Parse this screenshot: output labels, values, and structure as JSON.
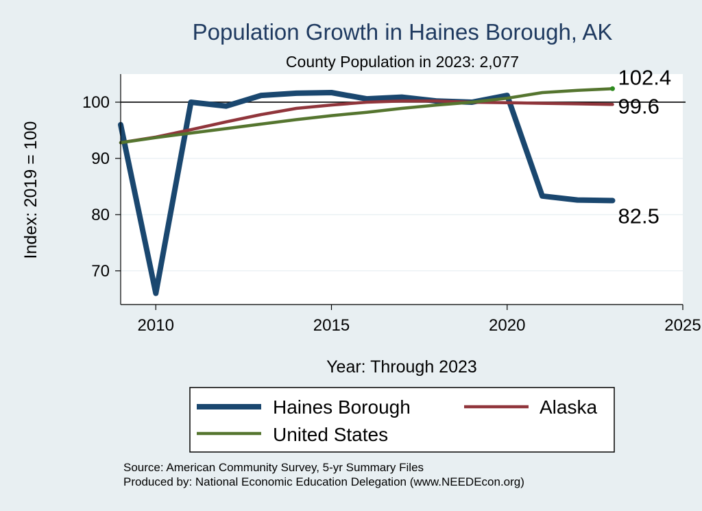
{
  "chart_data": {
    "type": "line",
    "title": "Population Growth in Haines Borough, AK",
    "subtitle": "County Population in 2023: 2,077",
    "xlabel": "Year: Through 2023",
    "ylabel": "Index: 2019 = 100",
    "xlim": [
      2009,
      2025
    ],
    "ylim": [
      64,
      105
    ],
    "xticks": [
      2010,
      2015,
      2020,
      2025
    ],
    "yticks": [
      70,
      80,
      90,
      100
    ],
    "reference_line": 100,
    "grid": true,
    "legend_position": "bottom",
    "x": [
      2009,
      2010,
      2011,
      2012,
      2013,
      2014,
      2015,
      2016,
      2017,
      2018,
      2019,
      2020,
      2021,
      2022,
      2023
    ],
    "series": [
      {
        "name": "Haines Borough",
        "color": "#1a476f",
        "values": [
          96.0,
          66.0,
          100.0,
          99.3,
          101.2,
          101.6,
          101.7,
          100.6,
          100.9,
          100.2,
          100.0,
          101.2,
          83.3,
          82.6,
          82.5
        ],
        "end_label": "82.5"
      },
      {
        "name": "Alaska",
        "color": "#90353b",
        "values": [
          92.8,
          93.8,
          95.1,
          96.5,
          97.8,
          98.9,
          99.5,
          100.0,
          100.2,
          100.2,
          100.0,
          99.9,
          99.8,
          99.7,
          99.6
        ],
        "end_label": "99.6"
      },
      {
        "name": "United States",
        "color": "#55752f",
        "values": [
          92.8,
          93.7,
          94.5,
          95.3,
          96.1,
          96.9,
          97.6,
          98.2,
          98.9,
          99.5,
          100.0,
          100.7,
          101.7,
          102.1,
          102.4
        ],
        "end_label": "102.4"
      }
    ]
  },
  "notes": {
    "source": "Source: American Community Survey, 5-yr Summary Files",
    "produced_by": "Produced by: National Economic Education Delegation (www.NEEDEcon.org)"
  }
}
